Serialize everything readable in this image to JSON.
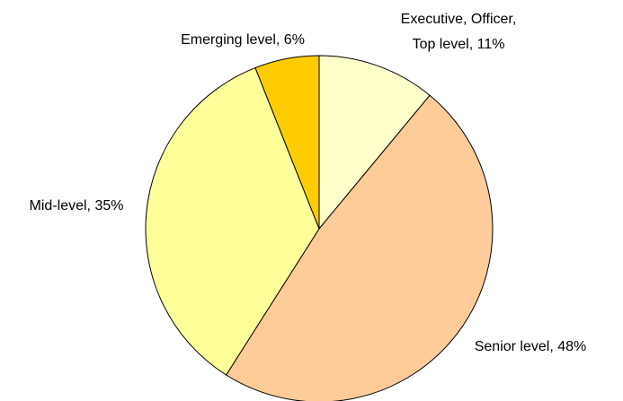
{
  "chart_data": {
    "type": "pie",
    "values": [
      11,
      48,
      35,
      6
    ],
    "value_labels": [
      [
        "Executive, Officer,",
        "Top level, 11%"
      ],
      [
        "Senior level, 48%"
      ],
      [
        "Mid-level, 35%"
      ],
      [
        "Emerging level, 6%"
      ]
    ],
    "colors": [
      "#FFFFCC",
      "#FFCC99",
      "#FFFF99",
      "#FFCC00"
    ]
  }
}
